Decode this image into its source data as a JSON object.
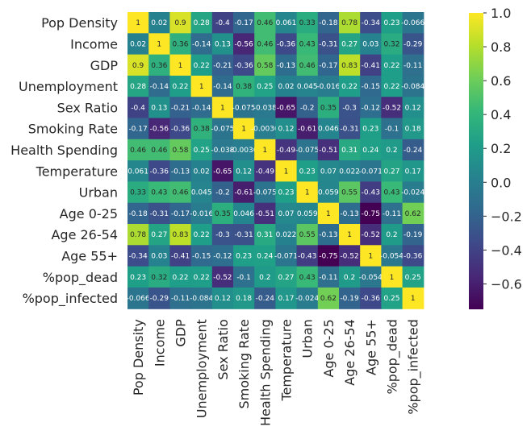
{
  "chart_data": {
    "type": "heatmap",
    "row_labels": [
      "Pop Density",
      "Income",
      "GDP",
      "Unemployment",
      "Sex Ratio",
      "Smoking Rate",
      "Health Spending",
      "Temperature",
      "Urban",
      "Age 0-25",
      "Age 26-54",
      "Age 55+",
      "%pop_dead",
      "%pop_infected"
    ],
    "col_labels": [
      "Pop Density",
      "Income",
      "GDP",
      "Unemployment",
      "Sex Ratio",
      "Smoking Rate",
      "Health Spending",
      "Temperature",
      "Urban",
      "Age 0-25",
      "Age 26-54",
      "Age 55+",
      "%pop_dead",
      "%pop_infected"
    ],
    "values": [
      [
        1,
        0.02,
        0.9,
        0.28,
        -0.4,
        -0.17,
        0.46,
        0.061,
        0.33,
        -0.18,
        0.78,
        -0.34,
        0.23,
        -0.066
      ],
      [
        0.02,
        1,
        0.36,
        -0.14,
        0.13,
        -0.56,
        0.46,
        -0.36,
        0.43,
        -0.31,
        0.27,
        0.03,
        0.32,
        -0.29
      ],
      [
        0.9,
        0.36,
        1,
        0.22,
        -0.21,
        -0.36,
        0.58,
        -0.13,
        0.46,
        -0.17,
        0.83,
        -0.41,
        0.22,
        -0.11
      ],
      [
        0.28,
        -0.14,
        0.22,
        1,
        -0.14,
        0.38,
        0.25,
        0.02,
        0.045,
        -0.016,
        0.22,
        -0.15,
        0.22,
        -0.084
      ],
      [
        -0.4,
        0.13,
        -0.21,
        -0.14,
        1,
        -0.075,
        -0.038,
        -0.65,
        -0.2,
        0.35,
        -0.3,
        -0.12,
        -0.52,
        0.12
      ],
      [
        -0.17,
        -0.56,
        -0.36,
        0.38,
        -0.075,
        1,
        -0.0036,
        0.12,
        -0.61,
        0.046,
        -0.31,
        0.23,
        -0.1,
        0.18
      ],
      [
        0.46,
        0.46,
        0.58,
        0.25,
        -0.038,
        -0.0036,
        1,
        -0.49,
        -0.075,
        -0.51,
        0.31,
        0.24,
        0.2,
        -0.24
      ],
      [
        0.061,
        -0.36,
        -0.13,
        0.02,
        -0.65,
        0.12,
        -0.49,
        1,
        0.23,
        0.07,
        0.022,
        -0.071,
        0.27,
        0.17
      ],
      [
        0.33,
        0.43,
        0.46,
        0.045,
        -0.2,
        -0.61,
        -0.075,
        0.23,
        1,
        0.059,
        0.55,
        -0.43,
        0.43,
        -0.024
      ],
      [
        -0.18,
        -0.31,
        -0.17,
        -0.016,
        0.35,
        0.046,
        -0.51,
        0.07,
        0.059,
        1,
        -0.13,
        -0.75,
        -0.11,
        0.62
      ],
      [
        0.78,
        0.27,
        0.83,
        0.22,
        -0.3,
        -0.31,
        0.31,
        0.022,
        0.55,
        -0.13,
        1,
        -0.52,
        0.2,
        -0.19
      ],
      [
        -0.34,
        0.03,
        -0.41,
        -0.15,
        -0.12,
        0.23,
        0.24,
        -0.071,
        -0.43,
        -0.75,
        -0.52,
        1,
        -0.054,
        -0.36
      ],
      [
        0.23,
        0.32,
        0.22,
        0.22,
        -0.52,
        -0.1,
        0.2,
        0.27,
        0.43,
        -0.11,
        0.2,
        -0.054,
        1,
        0.25
      ],
      [
        -0.066,
        -0.29,
        -0.11,
        -0.084,
        0.12,
        0.18,
        -0.24,
        0.17,
        -0.024,
        0.62,
        -0.19,
        -0.36,
        0.25,
        1
      ]
    ],
    "cell_labels": [
      [
        "1",
        "0.02",
        "0.9",
        "0.28",
        "-0.4",
        "-0.17",
        "0.46",
        "0.061",
        "0.33",
        "-0.18",
        "0.78",
        "-0.34",
        "0.23",
        "-0.066"
      ],
      [
        "0.02",
        "1",
        "0.36",
        "-0.14",
        "0.13",
        "-0.56",
        "0.46",
        "-0.36",
        "0.43",
        "-0.31",
        "0.27",
        "0.03",
        "0.32",
        "-0.29"
      ],
      [
        "0.9",
        "0.36",
        "1",
        "0.22",
        "-0.21",
        "-0.36",
        "0.58",
        "-0.13",
        "0.46",
        "-0.17",
        "0.83",
        "-0.41",
        "0.22",
        "-0.11"
      ],
      [
        "0.28",
        "-0.14",
        "0.22",
        "1",
        "-0.14",
        "0.38",
        "0.25",
        "0.02",
        "0.045",
        "-0.016",
        "0.22",
        "-0.15",
        "0.22",
        "-0.084"
      ],
      [
        "-0.4",
        "0.13",
        "-0.21",
        "-0.14",
        "1",
        "-0.075",
        "-0.038",
        "-0.65",
        "-0.2",
        "0.35",
        "-0.3",
        "-0.12",
        "-0.52",
        "0.12"
      ],
      [
        "-0.17",
        "-0.56",
        "-0.36",
        "0.38",
        "-0.075",
        "1",
        "-0.0036",
        "0.12",
        "-0.61",
        "0.046",
        "-0.31",
        "0.23",
        "-0.1",
        "0.18"
      ],
      [
        "0.46",
        "0.46",
        "0.58",
        "0.25",
        "-0.038",
        "-0.0036",
        "1",
        "-0.49",
        "-0.075",
        "-0.51",
        "0.31",
        "0.24",
        "0.2",
        "-0.24"
      ],
      [
        "0.061",
        "-0.36",
        "-0.13",
        "0.02",
        "-0.65",
        "0.12",
        "-0.49",
        "1",
        "0.23",
        "0.07",
        "0.022",
        "-0.071",
        "0.27",
        "0.17"
      ],
      [
        "0.33",
        "0.43",
        "0.46",
        "0.045",
        "-0.2",
        "-0.61",
        "-0.075",
        "0.23",
        "1",
        "0.059",
        "0.55",
        "-0.43",
        "0.43",
        "-0.024"
      ],
      [
        "-0.18",
        "-0.31",
        "-0.17",
        "-0.016",
        "0.35",
        "0.046",
        "-0.51",
        "0.07",
        "0.059",
        "1",
        "-0.13",
        "-0.75",
        "-0.11",
        "0.62"
      ],
      [
        "0.78",
        "0.27",
        "0.83",
        "0.22",
        "-0.3",
        "-0.31",
        "0.31",
        "0.022",
        "0.55",
        "-0.13",
        "1",
        "-0.52",
        "0.2",
        "-0.19"
      ],
      [
        "-0.34",
        "0.03",
        "-0.41",
        "-0.15",
        "-0.12",
        "0.23",
        "0.24",
        "-0.071",
        "-0.43",
        "-0.75",
        "-0.52",
        "1",
        "-0.054",
        "-0.36"
      ],
      [
        "0.23",
        "0.32",
        "0.22",
        "0.22",
        "-0.52",
        "-0.1",
        "0.2",
        "0.27",
        "0.43",
        "-0.11",
        "0.2",
        "-0.054",
        "1",
        "0.25"
      ],
      [
        "-0.066",
        "-0.29",
        "-0.11",
        "-0.084",
        "0.12",
        "0.18",
        "-0.24",
        "0.17",
        "-0.024",
        "0.62",
        "-0.19",
        "-0.36",
        "0.25",
        "1"
      ]
    ],
    "colormap": "viridis",
    "colormap_stops": [
      "#440154",
      "#482878",
      "#3e4989",
      "#31688e",
      "#26828e",
      "#1f9e89",
      "#35b779",
      "#6ece58",
      "#b5de2b",
      "#fde725"
    ],
    "vmin": -0.75,
    "vmax": 1.0,
    "colorbar_ticks": [
      1.0,
      0.8,
      0.6,
      0.4,
      0.2,
      0.0,
      -0.2,
      -0.4,
      -0.6
    ],
    "colorbar_tick_labels": [
      "1.0",
      "0.8",
      "0.6",
      "0.4",
      "0.2",
      "0.0",
      "−0.2",
      "−0.4",
      "−0.6"
    ],
    "annotation_colors": {
      "on_light": "#262626",
      "on_dark": "#ffffff"
    },
    "title": "",
    "xlabel": "",
    "ylabel": ""
  }
}
